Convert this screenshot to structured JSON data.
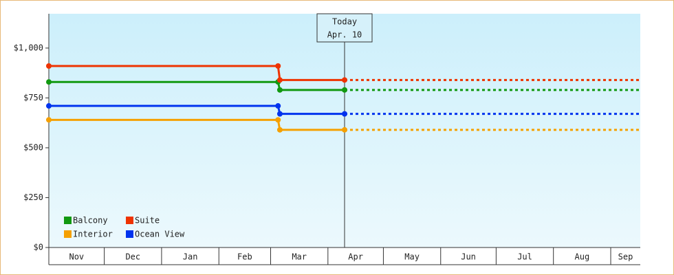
{
  "chart_data": {
    "type": "step-line",
    "xlim": [
      0,
      320
    ],
    "xticks": [
      0,
      30,
      61,
      92,
      120,
      151,
      181,
      212,
      242,
      273,
      304
    ],
    "categories": [
      "Nov",
      "Dec",
      "Jan",
      "Feb",
      "Mar",
      "Apr",
      "May",
      "Jun",
      "Jul",
      "Aug",
      "Sep"
    ],
    "ylim": [
      0,
      1172
    ],
    "yticks": [
      {
        "value": 0,
        "label": "$0"
      },
      {
        "value": 250,
        "label": "$250"
      },
      {
        "value": 500,
        "label": "$500"
      },
      {
        "value": 750,
        "label": "$750"
      },
      {
        "value": 1000,
        "label": "$1,000"
      }
    ],
    "legend": "bottom-left",
    "annotation": {
      "x": 160,
      "lines": [
        "Today",
        "Apr. 10"
      ]
    },
    "series": [
      {
        "name": "Balcony",
        "color": "#119911",
        "x": [
          0,
          124,
          125,
          160
        ],
        "values": [
          830,
          830,
          790,
          790
        ]
      },
      {
        "name": "Suite",
        "color": "#ee3300",
        "x": [
          0,
          124,
          125,
          160
        ],
        "values": [
          910,
          910,
          840,
          840
        ]
      },
      {
        "name": "Interior",
        "color": "#f5a000",
        "x": [
          0,
          124,
          125,
          160
        ],
        "values": [
          640,
          640,
          590,
          590
        ]
      },
      {
        "name": "Ocean View",
        "color": "#0033ee",
        "x": [
          0,
          124,
          125,
          160
        ],
        "values": [
          710,
          710,
          670,
          670
        ]
      }
    ]
  }
}
